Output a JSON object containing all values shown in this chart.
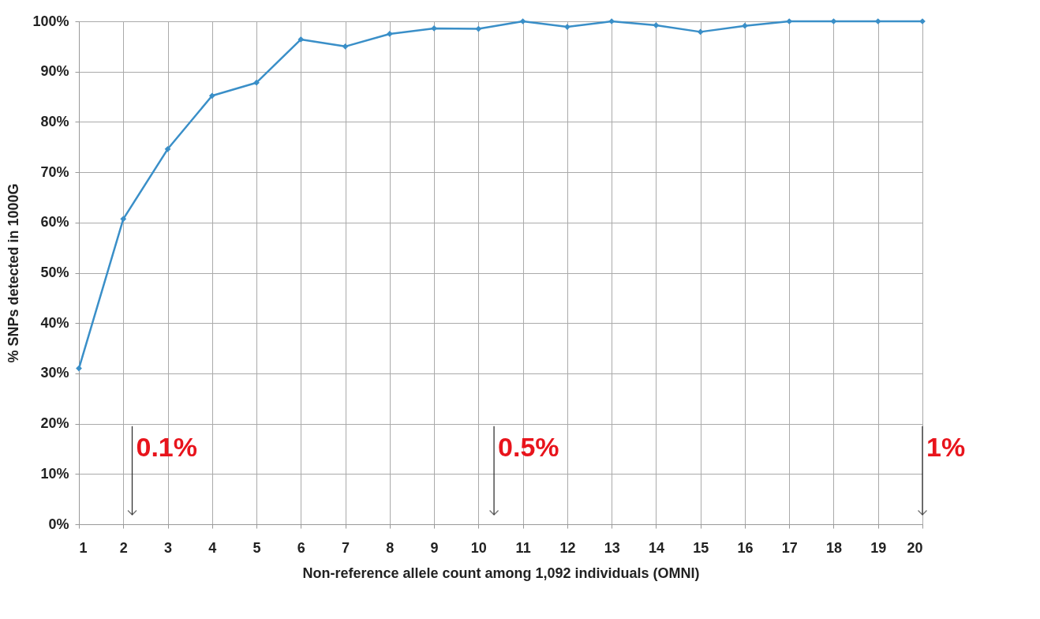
{
  "chart_data": {
    "type": "line",
    "xlabel": "Non-reference allele count among 1,092 individuals (OMNI)",
    "ylabel": "% SNPs detected in 1000G",
    "x": [
      1,
      2,
      3,
      4,
      5,
      6,
      7,
      8,
      9,
      10,
      11,
      12,
      13,
      14,
      15,
      16,
      17,
      18,
      19,
      20
    ],
    "series": [
      {
        "color": "#3a8fc8",
        "values": [
          31,
          60.7,
          74.6,
          85.2,
          87.8,
          96.4,
          95,
          97.5,
          98.6,
          98.5,
          100,
          98.9,
          100,
          99.2,
          97.9,
          99.1,
          100,
          100,
          100,
          100
        ]
      }
    ],
    "xlim": [
      1,
      20
    ],
    "xticks": [
      1,
      2,
      3,
      4,
      5,
      6,
      7,
      8,
      9,
      10,
      11,
      12,
      13,
      14,
      15,
      16,
      17,
      18,
      19,
      20
    ],
    "ylim": [
      0,
      100
    ],
    "yticks": [
      {
        "value": 0,
        "label": "0%"
      },
      {
        "value": 10,
        "label": "10%"
      },
      {
        "value": 20,
        "label": "20%"
      },
      {
        "value": 30,
        "label": "30%"
      },
      {
        "value": 40,
        "label": "40%"
      },
      {
        "value": 50,
        "label": "50%"
      },
      {
        "value": 60,
        "label": "60%"
      },
      {
        "value": 70,
        "label": "70%"
      },
      {
        "value": 80,
        "label": "80%"
      },
      {
        "value": 90,
        "label": "90%"
      },
      {
        "value": 100,
        "label": "100%"
      }
    ],
    "ref_lines": [
      {
        "axis": "x",
        "value": 2.2
      },
      {
        "axis": "x",
        "value": 10.35
      },
      {
        "axis": "x",
        "value": 20
      }
    ],
    "annotations": [
      "0.1%",
      "0.5%",
      "1%"
    ],
    "grid": true,
    "marker": "diamond",
    "line_style": "solid"
  }
}
